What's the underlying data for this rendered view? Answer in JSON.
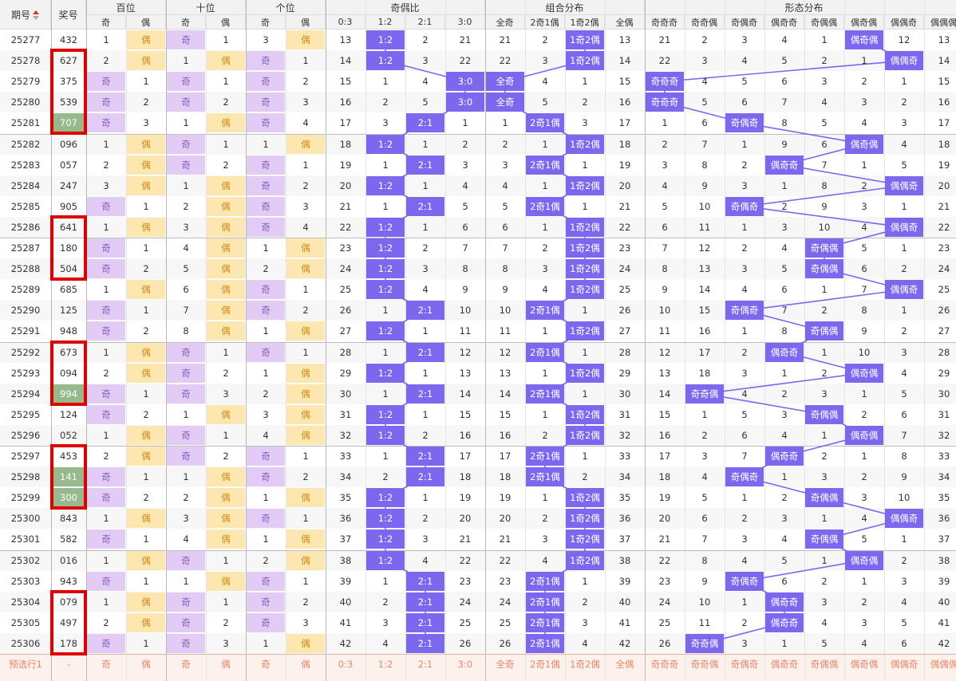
{
  "header": {
    "issue_col": "期号",
    "prize_col": "奖号",
    "groups": [
      "百位",
      "十位",
      "个位",
      "奇偶比",
      "组合分布",
      "形态分布"
    ],
    "sub": [
      "奇",
      "偶",
      "奇",
      "偶",
      "奇",
      "偶",
      "0:3",
      "1:2",
      "2:1",
      "3:0",
      "全奇",
      "2奇1偶",
      "1奇2偶",
      "全偶",
      "奇奇奇",
      "奇奇偶",
      "奇偶奇",
      "偶奇奇",
      "奇偶偶",
      "偶奇偶",
      "偶偶奇",
      "偶偶偶"
    ]
  },
  "rows": [
    {
      "issue": "25277",
      "num": "432",
      "h": [
        "1",
        "偶"
      ],
      "t": [
        "奇",
        "1"
      ],
      "u": [
        "3",
        "偶"
      ],
      "r": [
        "13",
        "1:2",
        "2",
        "21"
      ],
      "c": [
        "21",
        "2",
        "1奇2偶",
        "13"
      ],
      "f": [
        "21",
        "2",
        "3",
        "4",
        "1",
        "偶奇偶",
        "12",
        "13"
      ]
    },
    {
      "issue": "25278",
      "num": "627",
      "h": [
        "2",
        "偶"
      ],
      "t": [
        "1",
        "偶"
      ],
      "u": [
        "奇",
        "1"
      ],
      "r": [
        "14",
        "1:2",
        "3",
        "22"
      ],
      "c": [
        "22",
        "3",
        "1奇2偶",
        "14"
      ],
      "f": [
        "22",
        "3",
        "4",
        "5",
        "2",
        "1",
        "偶偶奇",
        "14"
      ]
    },
    {
      "issue": "25279",
      "num": "375",
      "h": [
        "奇",
        "1"
      ],
      "t": [
        "奇",
        "1"
      ],
      "u": [
        "奇",
        "2"
      ],
      "r": [
        "15",
        "1",
        "4",
        "3:0"
      ],
      "c": [
        "全奇",
        "4",
        "1",
        "15"
      ],
      "f": [
        "奇奇奇",
        "4",
        "5",
        "6",
        "3",
        "2",
        "1",
        "15"
      ]
    },
    {
      "issue": "25280",
      "num": "539",
      "h": [
        "奇",
        "2"
      ],
      "t": [
        "奇",
        "2"
      ],
      "u": [
        "奇",
        "3"
      ],
      "r": [
        "16",
        "2",
        "5",
        "3:0"
      ],
      "c": [
        "全奇",
        "5",
        "2",
        "16"
      ],
      "f": [
        "奇奇奇",
        "5",
        "6",
        "7",
        "4",
        "3",
        "2",
        "16"
      ]
    },
    {
      "issue": "25281",
      "num": "707",
      "h": [
        "奇",
        "3"
      ],
      "t": [
        "1",
        "偶"
      ],
      "u": [
        "奇",
        "4"
      ],
      "r": [
        "17",
        "3",
        "2:1",
        "1"
      ],
      "c": [
        "1",
        "2奇1偶",
        "3",
        "17"
      ],
      "f": [
        "1",
        "6",
        "奇偶奇",
        "8",
        "5",
        "4",
        "3",
        "17"
      ]
    },
    {
      "issue": "25282",
      "num": "096",
      "h": [
        "1",
        "偶"
      ],
      "t": [
        "奇",
        "1"
      ],
      "u": [
        "1",
        "偶"
      ],
      "r": [
        "18",
        "1:2",
        "1",
        "2"
      ],
      "c": [
        "2",
        "1",
        "1奇2偶",
        "18"
      ],
      "f": [
        "2",
        "7",
        "1",
        "9",
        "6",
        "偶奇偶",
        "4",
        "18"
      ]
    },
    {
      "issue": "25283",
      "num": "057",
      "h": [
        "2",
        "偶"
      ],
      "t": [
        "奇",
        "2"
      ],
      "u": [
        "奇",
        "1"
      ],
      "r": [
        "19",
        "1",
        "2:1",
        "3"
      ],
      "c": [
        "3",
        "2奇1偶",
        "1",
        "19"
      ],
      "f": [
        "3",
        "8",
        "2",
        "偶奇奇",
        "7",
        "1",
        "5",
        "19"
      ]
    },
    {
      "issue": "25284",
      "num": "247",
      "h": [
        "3",
        "偶"
      ],
      "t": [
        "1",
        "偶"
      ],
      "u": [
        "奇",
        "2"
      ],
      "r": [
        "20",
        "1:2",
        "1",
        "4"
      ],
      "c": [
        "4",
        "1",
        "1奇2偶",
        "20"
      ],
      "f": [
        "4",
        "9",
        "3",
        "1",
        "8",
        "2",
        "偶偶奇",
        "20"
      ]
    },
    {
      "issue": "25285",
      "num": "905",
      "h": [
        "奇",
        "1"
      ],
      "t": [
        "2",
        "偶"
      ],
      "u": [
        "奇",
        "3"
      ],
      "r": [
        "21",
        "1",
        "2:1",
        "5"
      ],
      "c": [
        "5",
        "2奇1偶",
        "1",
        "21"
      ],
      "f": [
        "5",
        "10",
        "奇偶奇",
        "2",
        "9",
        "3",
        "1",
        "21"
      ]
    },
    {
      "issue": "25286",
      "num": "641",
      "h": [
        "1",
        "偶"
      ],
      "t": [
        "3",
        "偶"
      ],
      "u": [
        "奇",
        "4"
      ],
      "r": [
        "22",
        "1:2",
        "1",
        "6"
      ],
      "c": [
        "6",
        "1",
        "1奇2偶",
        "22"
      ],
      "f": [
        "6",
        "11",
        "1",
        "3",
        "10",
        "4",
        "偶偶奇",
        "22"
      ]
    },
    {
      "issue": "25287",
      "num": "180",
      "h": [
        "奇",
        "1"
      ],
      "t": [
        "4",
        "偶"
      ],
      "u": [
        "1",
        "偶"
      ],
      "r": [
        "23",
        "1:2",
        "2",
        "7"
      ],
      "c": [
        "7",
        "2",
        "1奇2偶",
        "23"
      ],
      "f": [
        "7",
        "12",
        "2",
        "4",
        "奇偶偶",
        "5",
        "1",
        "23"
      ]
    },
    {
      "issue": "25288",
      "num": "504",
      "h": [
        "奇",
        "2"
      ],
      "t": [
        "5",
        "偶"
      ],
      "u": [
        "2",
        "偶"
      ],
      "r": [
        "24",
        "1:2",
        "3",
        "8"
      ],
      "c": [
        "8",
        "3",
        "1奇2偶",
        "24"
      ],
      "f": [
        "8",
        "13",
        "3",
        "5",
        "奇偶偶",
        "6",
        "2",
        "24"
      ]
    },
    {
      "issue": "25289",
      "num": "685",
      "h": [
        "1",
        "偶"
      ],
      "t": [
        "6",
        "偶"
      ],
      "u": [
        "奇",
        "1"
      ],
      "r": [
        "25",
        "1:2",
        "4",
        "9"
      ],
      "c": [
        "9",
        "4",
        "1奇2偶",
        "25"
      ],
      "f": [
        "9",
        "14",
        "4",
        "6",
        "1",
        "7",
        "偶偶奇",
        "25"
      ]
    },
    {
      "issue": "25290",
      "num": "125",
      "h": [
        "奇",
        "1"
      ],
      "t": [
        "7",
        "偶"
      ],
      "u": [
        "奇",
        "2"
      ],
      "r": [
        "26",
        "1",
        "2:1",
        "10"
      ],
      "c": [
        "10",
        "2奇1偶",
        "1",
        "26"
      ],
      "f": [
        "10",
        "15",
        "奇偶奇",
        "7",
        "2",
        "8",
        "1",
        "26"
      ]
    },
    {
      "issue": "25291",
      "num": "948",
      "h": [
        "奇",
        "2"
      ],
      "t": [
        "8",
        "偶"
      ],
      "u": [
        "1",
        "偶"
      ],
      "r": [
        "27",
        "1:2",
        "1",
        "11"
      ],
      "c": [
        "11",
        "1",
        "1奇2偶",
        "27"
      ],
      "f": [
        "11",
        "16",
        "1",
        "8",
        "奇偶偶",
        "9",
        "2",
        "27"
      ]
    },
    {
      "issue": "25292",
      "num": "673",
      "h": [
        "1",
        "偶"
      ],
      "t": [
        "奇",
        "1"
      ],
      "u": [
        "奇",
        "1"
      ],
      "r": [
        "28",
        "1",
        "2:1",
        "12"
      ],
      "c": [
        "12",
        "2奇1偶",
        "1",
        "28"
      ],
      "f": [
        "12",
        "17",
        "2",
        "偶奇奇",
        "1",
        "10",
        "3",
        "28"
      ]
    },
    {
      "issue": "25293",
      "num": "094",
      "h": [
        "2",
        "偶"
      ],
      "t": [
        "奇",
        "2"
      ],
      "u": [
        "1",
        "偶"
      ],
      "r": [
        "29",
        "1:2",
        "1",
        "13"
      ],
      "c": [
        "13",
        "1",
        "1奇2偶",
        "29"
      ],
      "f": [
        "13",
        "18",
        "3",
        "1",
        "2",
        "偶奇偶",
        "4",
        "29"
      ]
    },
    {
      "issue": "25294",
      "num": "994",
      "h": [
        "奇",
        "1"
      ],
      "t": [
        "奇",
        "3"
      ],
      "u": [
        "2",
        "偶"
      ],
      "r": [
        "30",
        "1",
        "2:1",
        "14"
      ],
      "c": [
        "14",
        "2奇1偶",
        "1",
        "30"
      ],
      "f": [
        "14",
        "奇奇偶",
        "4",
        "2",
        "3",
        "1",
        "5",
        "30"
      ]
    },
    {
      "issue": "25295",
      "num": "124",
      "h": [
        "奇",
        "2"
      ],
      "t": [
        "1",
        "偶"
      ],
      "u": [
        "3",
        "偶"
      ],
      "r": [
        "31",
        "1:2",
        "1",
        "15"
      ],
      "c": [
        "15",
        "1",
        "1奇2偶",
        "31"
      ],
      "f": [
        "15",
        "1",
        "5",
        "3",
        "奇偶偶",
        "2",
        "6",
        "31"
      ]
    },
    {
      "issue": "25296",
      "num": "052",
      "h": [
        "1",
        "偶"
      ],
      "t": [
        "奇",
        "1"
      ],
      "u": [
        "4",
        "偶"
      ],
      "r": [
        "32",
        "1:2",
        "2",
        "16"
      ],
      "c": [
        "16",
        "2",
        "1奇2偶",
        "32"
      ],
      "f": [
        "16",
        "2",
        "6",
        "4",
        "1",
        "偶奇偶",
        "7",
        "32"
      ]
    },
    {
      "issue": "25297",
      "num": "453",
      "h": [
        "2",
        "偶"
      ],
      "t": [
        "奇",
        "2"
      ],
      "u": [
        "奇",
        "1"
      ],
      "r": [
        "33",
        "1",
        "2:1",
        "17"
      ],
      "c": [
        "17",
        "2奇1偶",
        "1",
        "33"
      ],
      "f": [
        "17",
        "3",
        "7",
        "偶奇奇",
        "2",
        "1",
        "8",
        "33"
      ]
    },
    {
      "issue": "25298",
      "num": "141",
      "h": [
        "奇",
        "1"
      ],
      "t": [
        "1",
        "偶"
      ],
      "u": [
        "奇",
        "2"
      ],
      "r": [
        "34",
        "2",
        "2:1",
        "18"
      ],
      "c": [
        "18",
        "2奇1偶",
        "2",
        "34"
      ],
      "f": [
        "18",
        "4",
        "奇偶奇",
        "1",
        "3",
        "2",
        "9",
        "34"
      ]
    },
    {
      "issue": "25299",
      "num": "300",
      "h": [
        "奇",
        "2"
      ],
      "t": [
        "2",
        "偶"
      ],
      "u": [
        "1",
        "偶"
      ],
      "r": [
        "35",
        "1:2",
        "1",
        "19"
      ],
      "c": [
        "19",
        "1",
        "1奇2偶",
        "35"
      ],
      "f": [
        "19",
        "5",
        "1",
        "2",
        "奇偶偶",
        "3",
        "10",
        "35"
      ]
    },
    {
      "issue": "25300",
      "num": "843",
      "h": [
        "1",
        "偶"
      ],
      "t": [
        "3",
        "偶"
      ],
      "u": [
        "奇",
        "1"
      ],
      "r": [
        "36",
        "1:2",
        "2",
        "20"
      ],
      "c": [
        "20",
        "2",
        "1奇2偶",
        "36"
      ],
      "f": [
        "20",
        "6",
        "2",
        "3",
        "1",
        "4",
        "偶偶奇",
        "36"
      ]
    },
    {
      "issue": "25301",
      "num": "582",
      "h": [
        "奇",
        "1"
      ],
      "t": [
        "4",
        "偶"
      ],
      "u": [
        "1",
        "偶"
      ],
      "r": [
        "37",
        "1:2",
        "3",
        "21"
      ],
      "c": [
        "21",
        "3",
        "1奇2偶",
        "37"
      ],
      "f": [
        "21",
        "7",
        "3",
        "4",
        "奇偶偶",
        "5",
        "1",
        "37"
      ]
    },
    {
      "issue": "25302",
      "num": "016",
      "h": [
        "1",
        "偶"
      ],
      "t": [
        "奇",
        "1"
      ],
      "u": [
        "2",
        "偶"
      ],
      "r": [
        "38",
        "1:2",
        "4",
        "22"
      ],
      "c": [
        "22",
        "4",
        "1奇2偶",
        "38"
      ],
      "f": [
        "22",
        "8",
        "4",
        "5",
        "1",
        "偶奇偶",
        "2",
        "38"
      ]
    },
    {
      "issue": "25303",
      "num": "943",
      "h": [
        "奇",
        "1"
      ],
      "t": [
        "1",
        "偶"
      ],
      "u": [
        "奇",
        "1"
      ],
      "r": [
        "39",
        "1",
        "2:1",
        "23"
      ],
      "c": [
        "23",
        "2奇1偶",
        "1",
        "39"
      ],
      "f": [
        "23",
        "9",
        "奇偶奇",
        "6",
        "2",
        "1",
        "3",
        "39"
      ]
    },
    {
      "issue": "25304",
      "num": "079",
      "h": [
        "1",
        "偶"
      ],
      "t": [
        "奇",
        "1"
      ],
      "u": [
        "奇",
        "2"
      ],
      "r": [
        "40",
        "2",
        "2:1",
        "24"
      ],
      "c": [
        "24",
        "2奇1偶",
        "2",
        "40"
      ],
      "f": [
        "24",
        "10",
        "1",
        "偶奇奇",
        "3",
        "2",
        "4",
        "40"
      ]
    },
    {
      "issue": "25305",
      "num": "497",
      "h": [
        "2",
        "偶"
      ],
      "t": [
        "奇",
        "2"
      ],
      "u": [
        "奇",
        "3"
      ],
      "r": [
        "41",
        "3",
        "2:1",
        "25"
      ],
      "c": [
        "25",
        "2奇1偶",
        "3",
        "41"
      ],
      "f": [
        "25",
        "11",
        "2",
        "偶奇奇",
        "4",
        "3",
        "5",
        "41"
      ]
    },
    {
      "issue": "25306",
      "num": "178",
      "h": [
        "奇",
        "1"
      ],
      "t": [
        "奇",
        "3"
      ],
      "u": [
        "1",
        "偶"
      ],
      "r": [
        "42",
        "4",
        "2:1",
        "26"
      ],
      "c": [
        "26",
        "2奇1偶",
        "4",
        "42"
      ],
      "f": [
        "26",
        "奇奇偶",
        "3",
        "1",
        "5",
        "4",
        "6",
        "42"
      ]
    }
  ],
  "footer": {
    "label": "预选行1",
    "num": "-",
    "cells": [
      "奇",
      "偶",
      "奇",
      "偶",
      "奇",
      "偶",
      "0:3",
      "1:2",
      "2:1",
      "3:0",
      "全奇",
      "2奇1偶",
      "1奇2偶",
      "全偶",
      "奇奇奇",
      "奇奇偶",
      "奇偶奇",
      "偶奇奇",
      "奇偶偶",
      "偶奇偶",
      "偶偶奇",
      "偶偶偶"
    ]
  },
  "highlight_nums": [
    "707",
    "994",
    "141",
    "300"
  ],
  "colors": {
    "hit": "#7b68ee",
    "odd": "#e2ccf5",
    "even": "#fde7b0",
    "green": "#97b98c",
    "box": "#e00000",
    "line": "#7b68ee"
  }
}
